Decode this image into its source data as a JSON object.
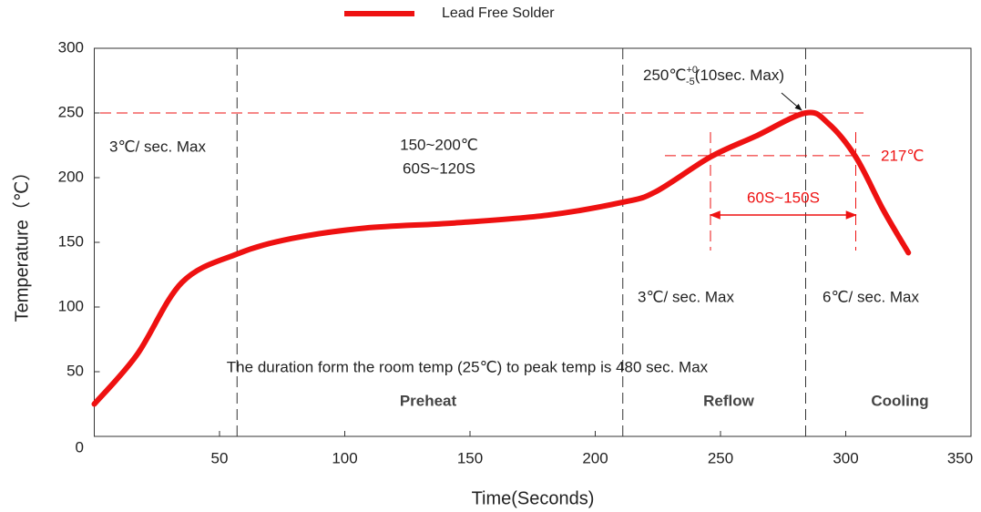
{
  "chart_data": {
    "type": "line",
    "x_label": "Time(Seconds)",
    "y_label": "Temperature（℃）",
    "x": [
      0,
      17,
      35,
      57,
      79,
      108,
      144,
      181,
      211,
      224,
      246,
      264,
      284,
      293,
      304,
      315,
      325
    ],
    "series": [
      {
        "name": "Lead Free Solder",
        "color": "#ee1111",
        "values": [
          25,
          63,
          119,
          141,
          153,
          161,
          165,
          171,
          181,
          189,
          216,
          232,
          250,
          242,
          216,
          175,
          142
        ]
      }
    ],
    "xlim": [
      0,
      350
    ],
    "xticks": [
      50,
      100,
      150,
      200,
      250,
      300,
      350
    ],
    "ylim": [
      0,
      300
    ],
    "yticks": [
      0,
      50,
      100,
      150,
      200,
      250,
      300
    ],
    "vlines": [
      57,
      211,
      284
    ],
    "hlines": [
      250,
      217
    ],
    "window": [
      246,
      304
    ],
    "annotations": {
      "peak": "250℃",
      "peak_sup": "+0",
      "peak_sub": "-5",
      "peak_tail": "(10sec. Max)",
      "ramp_left": "3℃/ sec. Max",
      "soak_temp": "150~200℃",
      "soak_time": "60S~120S",
      "liquidus": "217℃",
      "window_label": "60S~150S",
      "ramp_reflow": "3℃/ sec. Max",
      "ramp_cool": "6℃/ sec. Max",
      "duration": "The duration form the room temp (25℃) to peak temp is 480 sec. Max",
      "zone_preheat": "Preheat",
      "zone_reflow": "Reflow",
      "zone_cooling": "Cooling"
    }
  }
}
